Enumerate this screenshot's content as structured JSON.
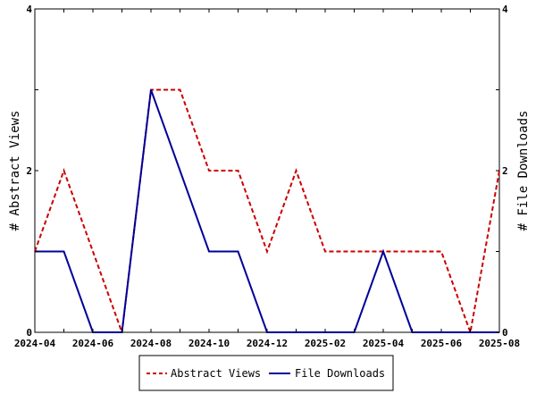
{
  "chart_data": {
    "type": "line",
    "x": [
      "2024-04",
      "2024-05",
      "2024-06",
      "2024-07",
      "2024-08",
      "2024-09",
      "2024-10",
      "2024-11",
      "2024-12",
      "2025-01",
      "2025-02",
      "2025-03",
      "2025-04",
      "2025-05",
      "2025-06",
      "2025-07",
      "2025-08"
    ],
    "x_tick_labels": [
      "2024-04",
      "2024-06",
      "2024-08",
      "2024-10",
      "2024-12",
      "2025-02",
      "2025-04",
      "2025-06",
      "2025-08"
    ],
    "series": [
      {
        "name": "Abstract Views",
        "axis": "left",
        "color": "#cc0000",
        "dash": "dashed",
        "values": [
          1,
          2,
          1,
          0,
          3,
          3,
          2,
          2,
          1,
          2,
          1,
          1,
          1,
          1,
          1,
          0,
          2
        ]
      },
      {
        "name": "File Downloads",
        "axis": "right",
        "color": "#000099",
        "dash": "solid",
        "values": [
          1,
          1,
          0,
          0,
          3,
          2,
          1,
          1,
          0,
          0,
          0,
          0,
          1,
          0,
          0,
          0,
          0
        ]
      }
    ],
    "ylabel_left": "# Abstract Views",
    "ylabel_right": "# File Downloads",
    "ylim_left": [
      0,
      4
    ],
    "ylim_right": [
      0,
      4
    ],
    "y_ticks_left": [
      "0",
      "2",
      "4"
    ],
    "y_ticks_right": [
      "0",
      "2",
      "4"
    ],
    "grid": false,
    "legend": "bottom"
  }
}
